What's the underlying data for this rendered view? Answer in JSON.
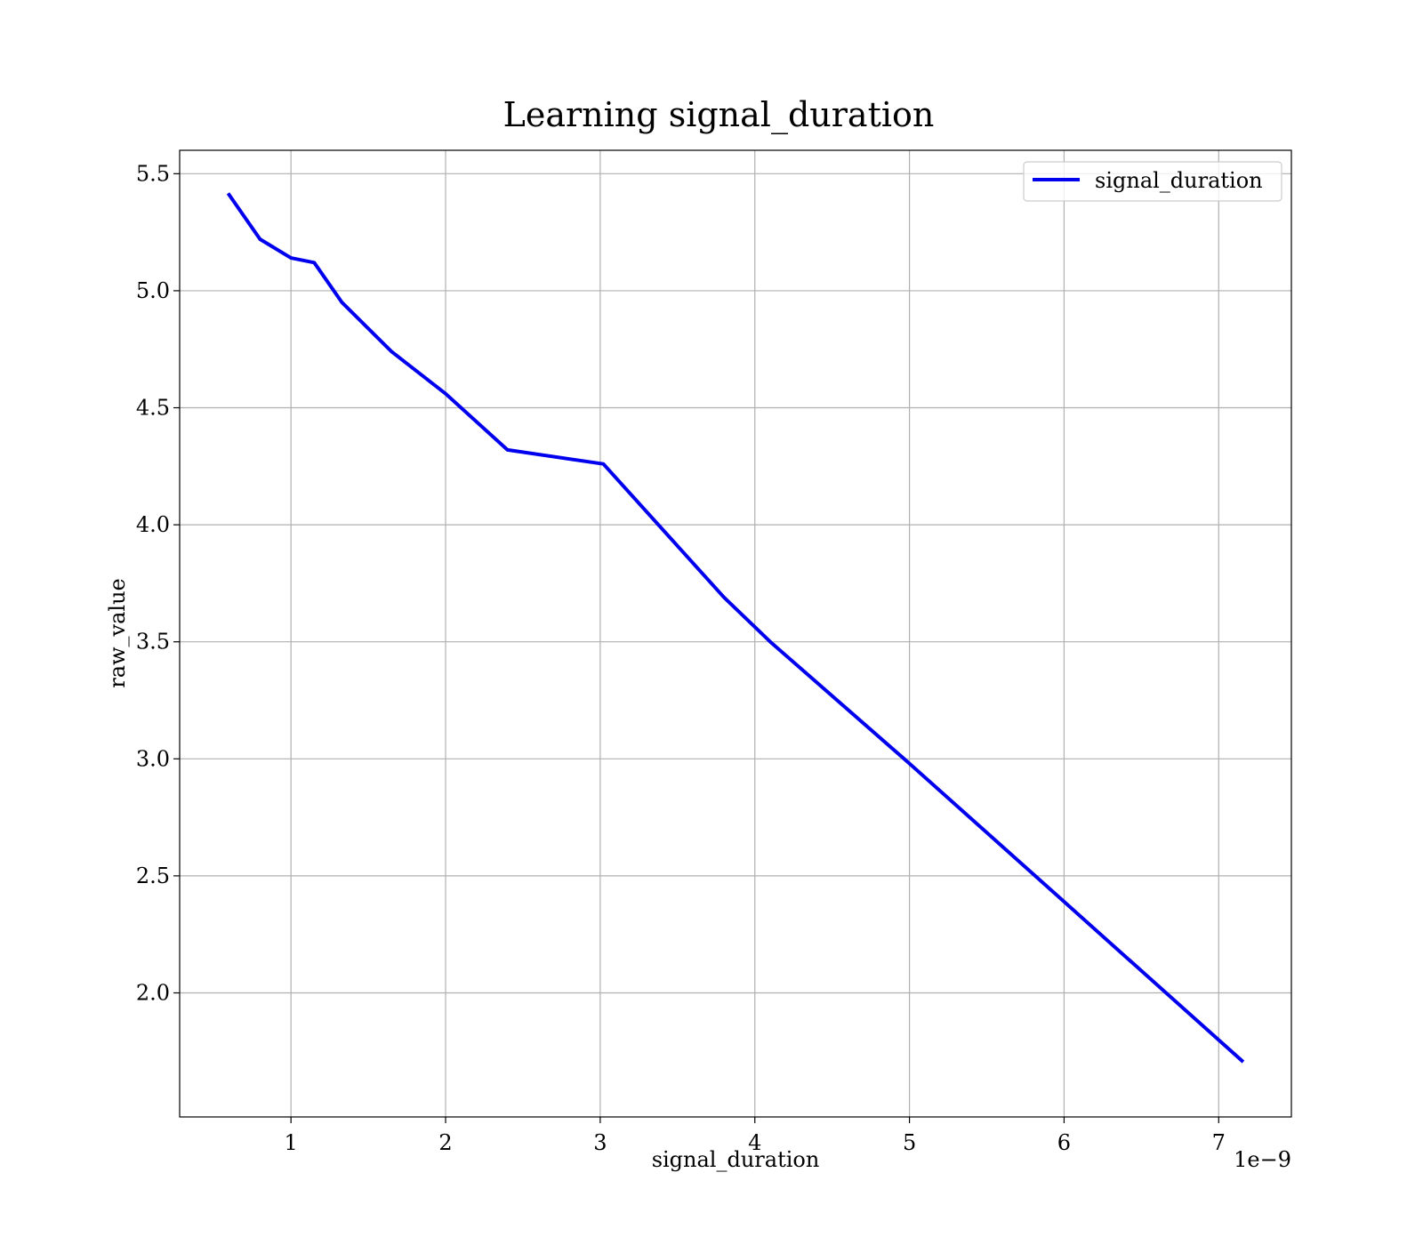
{
  "chart_data": {
    "type": "line",
    "title": "Learning signal_duration",
    "xlabel": "signal_duration",
    "ylabel": "raw_value",
    "x_offset_label": "1e−9",
    "xlim": [
      0.28,
      7.47
    ],
    "ylim": [
      1.47,
      5.6
    ],
    "x_ticks": [
      1,
      2,
      3,
      4,
      5,
      6,
      7
    ],
    "x_tick_labels": [
      "1",
      "2",
      "3",
      "4",
      "5",
      "6",
      "7"
    ],
    "y_ticks": [
      2.0,
      2.5,
      3.0,
      3.5,
      4.0,
      4.5,
      5.0,
      5.5
    ],
    "y_tick_labels": [
      "2.0",
      "2.5",
      "3.0",
      "3.5",
      "4.0",
      "4.5",
      "5.0",
      "5.5"
    ],
    "grid": true,
    "legend_position": "top-right",
    "series": [
      {
        "name": "signal_duration",
        "color": "#0000ee",
        "x": [
          0.6,
          0.8,
          1.0,
          1.15,
          1.33,
          1.65,
          2.0,
          2.4,
          3.02,
          3.8,
          4.1,
          5.0,
          6.0,
          7.15
        ],
        "y": [
          5.41,
          5.22,
          5.14,
          5.12,
          4.95,
          4.74,
          4.56,
          4.32,
          4.26,
          3.69,
          3.5,
          2.98,
          2.39,
          1.71
        ]
      }
    ]
  }
}
